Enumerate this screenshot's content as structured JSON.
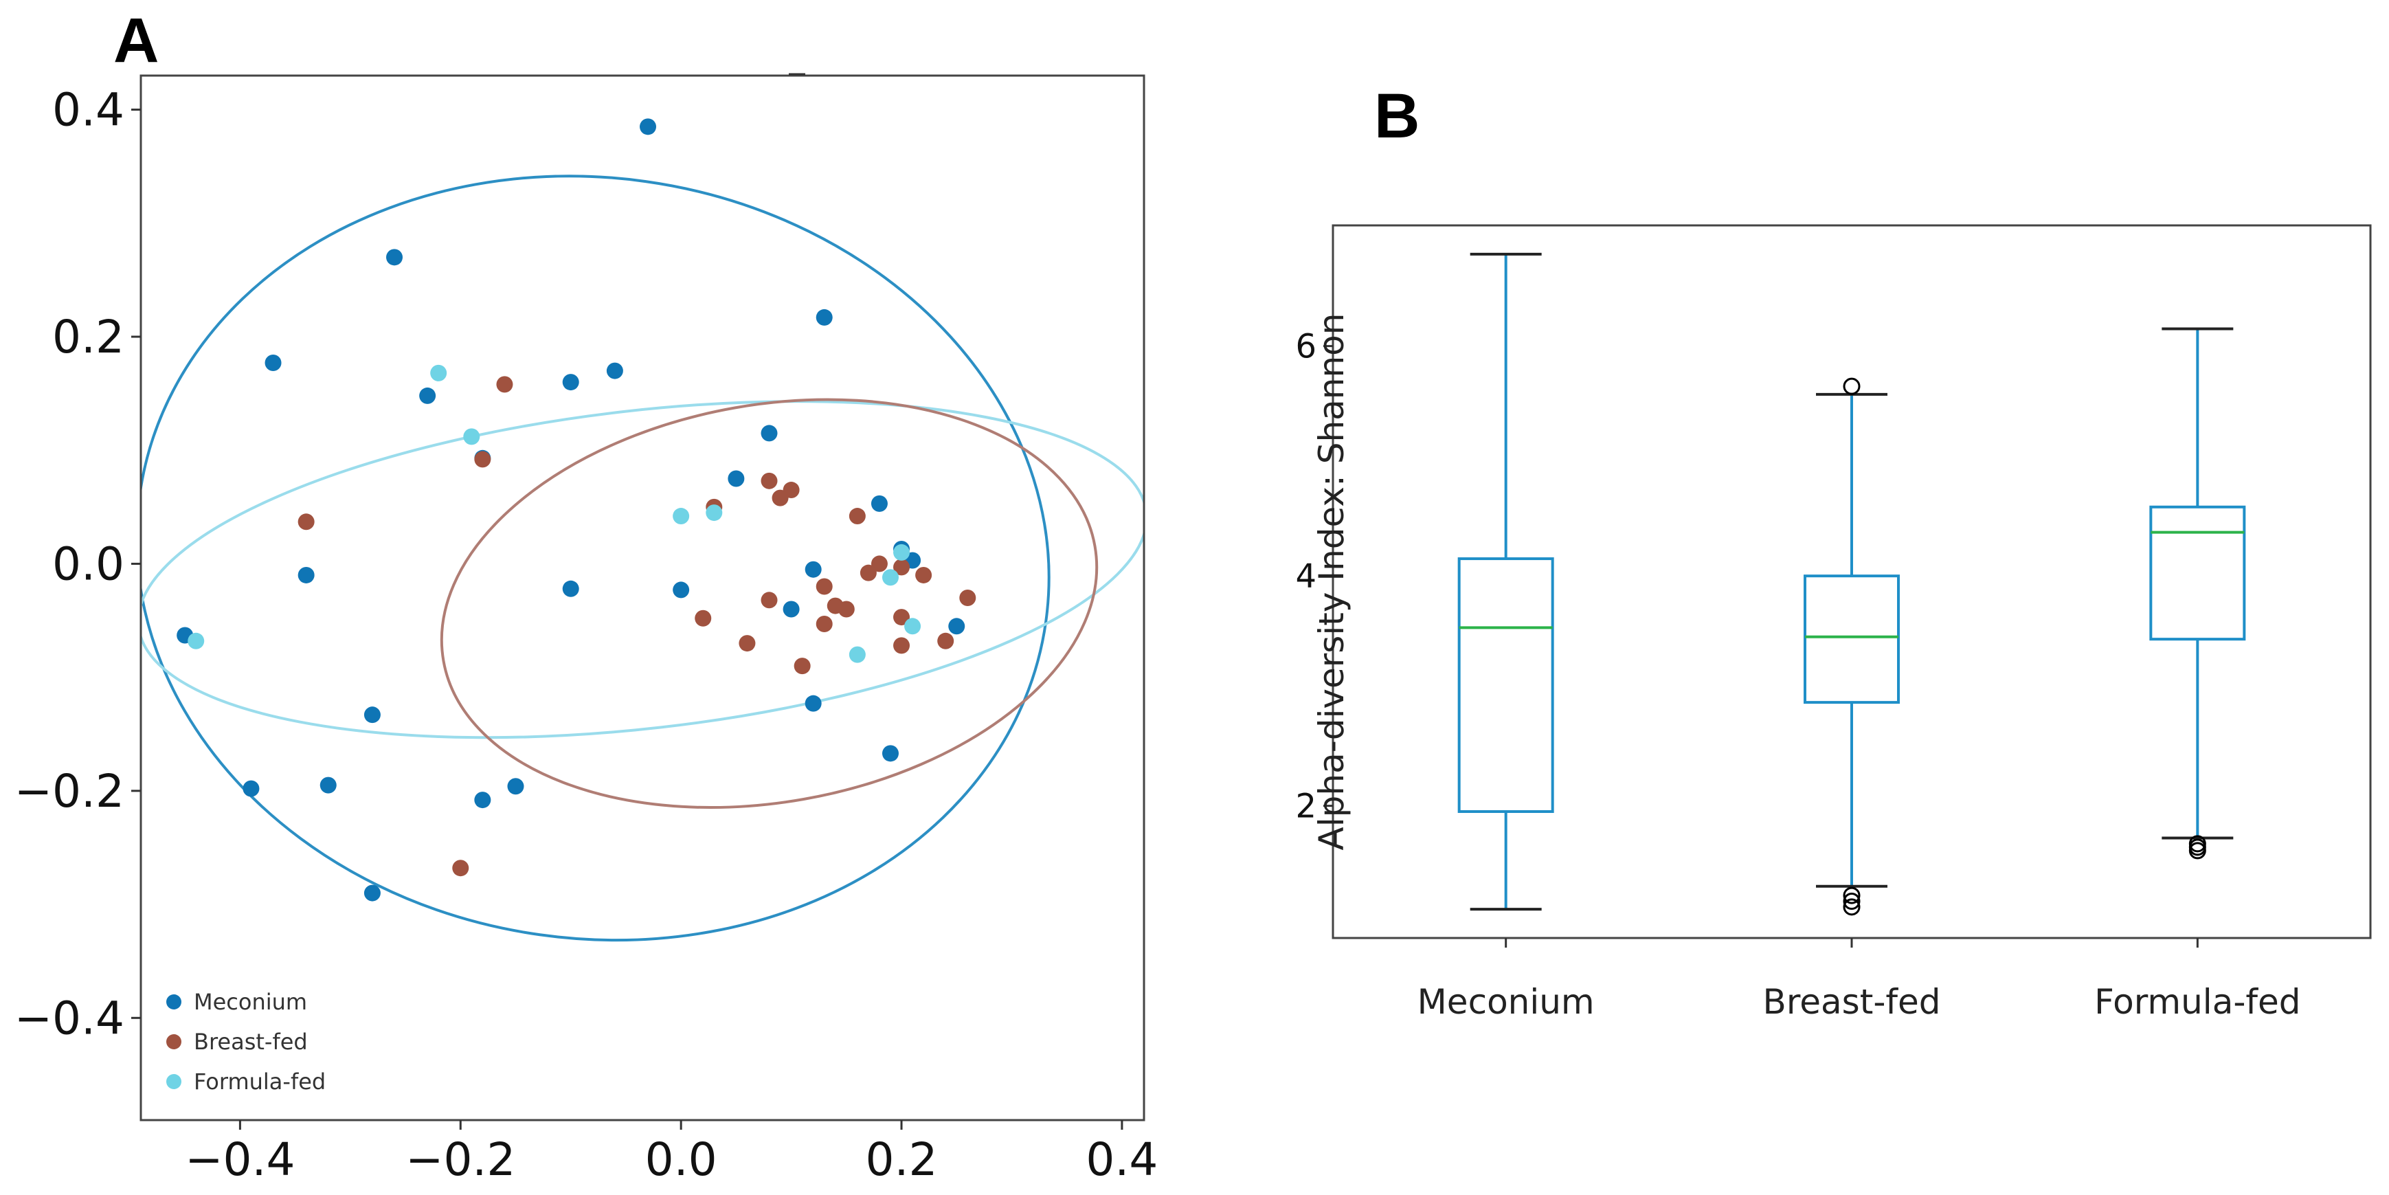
{
  "chart_data": [
    {
      "panel": "A",
      "type": "scatter",
      "title": "",
      "xlabel": "",
      "ylabel": "",
      "xlim": [
        -0.49,
        0.42
      ],
      "ylim": [
        -0.49,
        0.43
      ],
      "xticks": [
        -0.4,
        -0.2,
        0.0,
        0.2,
        0.4
      ],
      "xtick_labels": [
        "−0.4",
        "−0.2",
        "0.0",
        "0.2",
        "0.4"
      ],
      "yticks": [
        -0.4,
        -0.2,
        0.0,
        0.2,
        0.4
      ],
      "ytick_labels": [
        "−0.4",
        "−0.2",
        "0.0",
        "0.2",
        "0.4"
      ],
      "grid": false,
      "legend_position": "bottom-left",
      "series": [
        {
          "name": "Meconium",
          "color": "#0F75B5",
          "points": [
            [
              -0.03,
              0.385
            ],
            [
              -0.26,
              0.27
            ],
            [
              0.13,
              0.217
            ],
            [
              -0.37,
              0.177
            ],
            [
              -0.06,
              0.17
            ],
            [
              -0.1,
              0.16
            ],
            [
              -0.23,
              0.148
            ],
            [
              -0.18,
              0.093
            ],
            [
              0.08,
              0.115
            ],
            [
              0.05,
              0.075
            ],
            [
              0.18,
              0.053
            ],
            [
              0.2,
              0.013
            ],
            [
              0.21,
              0.003
            ],
            [
              -0.34,
              -0.01
            ],
            [
              -0.1,
              -0.022
            ],
            [
              0.0,
              -0.023
            ],
            [
              0.12,
              -0.005
            ],
            [
              0.1,
              -0.04
            ],
            [
              0.25,
              -0.055
            ],
            [
              -0.45,
              -0.063
            ],
            [
              0.12,
              -0.123
            ],
            [
              -0.28,
              -0.133
            ],
            [
              0.19,
              -0.167
            ],
            [
              -0.39,
              -0.198
            ],
            [
              -0.32,
              -0.195
            ],
            [
              -0.15,
              -0.196
            ],
            [
              -0.18,
              -0.208
            ],
            [
              -0.28,
              -0.29
            ]
          ]
        },
        {
          "name": "Breast-fed",
          "color": "#A0523F",
          "points": [
            [
              -0.16,
              0.158
            ],
            [
              -0.18,
              0.092
            ],
            [
              -0.34,
              0.037
            ],
            [
              0.08,
              0.073
            ],
            [
              0.1,
              0.065
            ],
            [
              0.09,
              0.058
            ],
            [
              0.03,
              0.05
            ],
            [
              0.16,
              0.042
            ],
            [
              0.18,
              0.0
            ],
            [
              0.2,
              -0.003
            ],
            [
              0.17,
              -0.008
            ],
            [
              0.22,
              -0.01
            ],
            [
              0.13,
              -0.02
            ],
            [
              0.08,
              -0.032
            ],
            [
              0.14,
              -0.037
            ],
            [
              0.15,
              -0.04
            ],
            [
              0.26,
              -0.03
            ],
            [
              0.02,
              -0.048
            ],
            [
              0.2,
              -0.047
            ],
            [
              0.13,
              -0.053
            ],
            [
              0.06,
              -0.07
            ],
            [
              0.2,
              -0.072
            ],
            [
              0.24,
              -0.068
            ],
            [
              0.11,
              -0.09
            ],
            [
              -0.2,
              -0.268
            ]
          ]
        },
        {
          "name": "Formula-fed",
          "color": "#6FD3E5",
          "points": [
            [
              -0.22,
              0.168
            ],
            [
              -0.19,
              0.112
            ],
            [
              0.0,
              0.042
            ],
            [
              0.03,
              0.045
            ],
            [
              0.2,
              0.01
            ],
            [
              0.19,
              -0.012
            ],
            [
              0.21,
              -0.055
            ],
            [
              -0.44,
              -0.068
            ],
            [
              0.16,
              -0.08
            ]
          ]
        }
      ],
      "ellipses": [
        {
          "name": "Meconium",
          "color": "#2C8FC4",
          "cx": -0.08,
          "cy": 0.005,
          "rx": 0.415,
          "ry": 0.335,
          "angle_deg": 8
        },
        {
          "name": "Formula-fed",
          "color": "#9ADCEC",
          "cx": -0.035,
          "cy": -0.005,
          "rx": 0.46,
          "ry": 0.14,
          "angle_deg": -6.5
        },
        {
          "name": "Breast-fed",
          "color": "#B07D74",
          "cx": 0.08,
          "cy": -0.035,
          "rx": 0.3,
          "ry": 0.175,
          "angle_deg": -10
        }
      ]
    },
    {
      "panel": "B",
      "type": "box",
      "title": "",
      "xlabel": "",
      "ylabel": "Alpha-diversity Index: Shannon",
      "ylim": [
        0.85,
        7.05
      ],
      "yticks": [
        2,
        4,
        6
      ],
      "ytick_labels": [
        "2",
        "4",
        "6"
      ],
      "grid": false,
      "box_color": "#1F8FC8",
      "median_color": "#2CB34A",
      "outlier_color": "#000000",
      "categories": [
        "Meconium",
        "Breast-fed",
        "Formula-fed"
      ],
      "boxes": [
        {
          "name": "Meconium",
          "whisker_low": 1.1,
          "q1": 1.95,
          "median": 3.55,
          "q3": 4.15,
          "whisker_high": 6.8,
          "outliers": []
        },
        {
          "name": "Breast-fed",
          "whisker_low": 1.3,
          "q1": 2.9,
          "median": 3.47,
          "q3": 4.0,
          "whisker_high": 5.58,
          "outliers": [
            5.65,
            1.22,
            1.17,
            1.12
          ]
        },
        {
          "name": "Formula-fed",
          "whisker_low": 1.72,
          "q1": 3.45,
          "median": 4.38,
          "q3": 4.6,
          "whisker_high": 6.15,
          "outliers": [
            1.67,
            1.64,
            1.61
          ]
        }
      ]
    }
  ]
}
